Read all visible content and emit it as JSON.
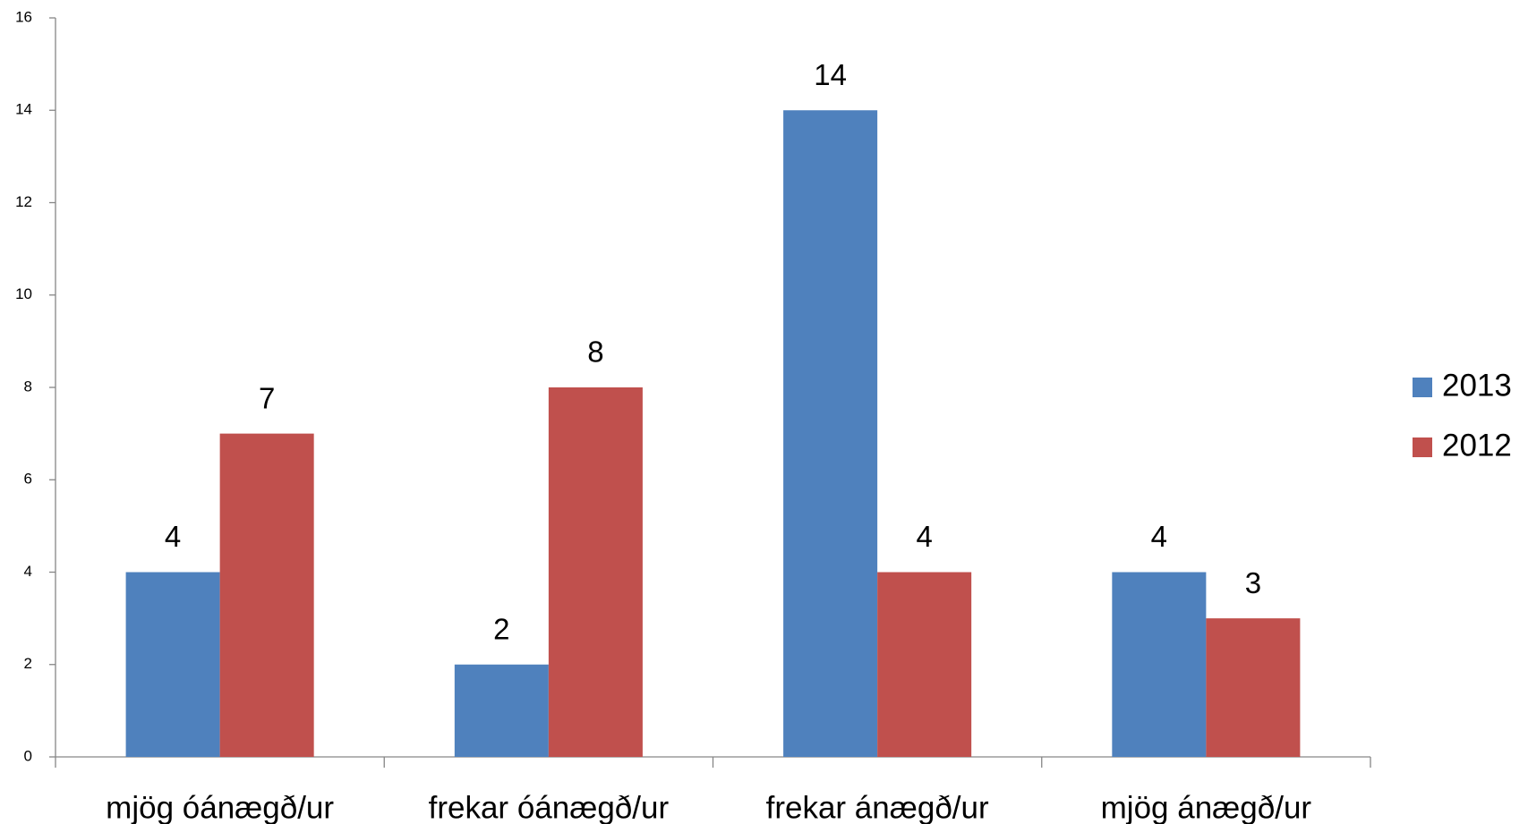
{
  "chart_data": {
    "type": "bar",
    "categories": [
      "mjög óánægð/ur",
      "frekar óánægð/ur",
      "frekar ánægð/ur",
      "mjög ánægð/ur"
    ],
    "series": [
      {
        "name": "2013",
        "color": "#4f81bd",
        "values": [
          4,
          2,
          14,
          4
        ]
      },
      {
        "name": "2012",
        "color": "#c0504d",
        "values": [
          7,
          8,
          4,
          3
        ]
      }
    ],
    "ylim": [
      0,
      16
    ],
    "yticks": [
      0,
      2,
      4,
      6,
      8,
      10,
      12,
      14,
      16
    ],
    "grid": false,
    "legend": "right"
  }
}
